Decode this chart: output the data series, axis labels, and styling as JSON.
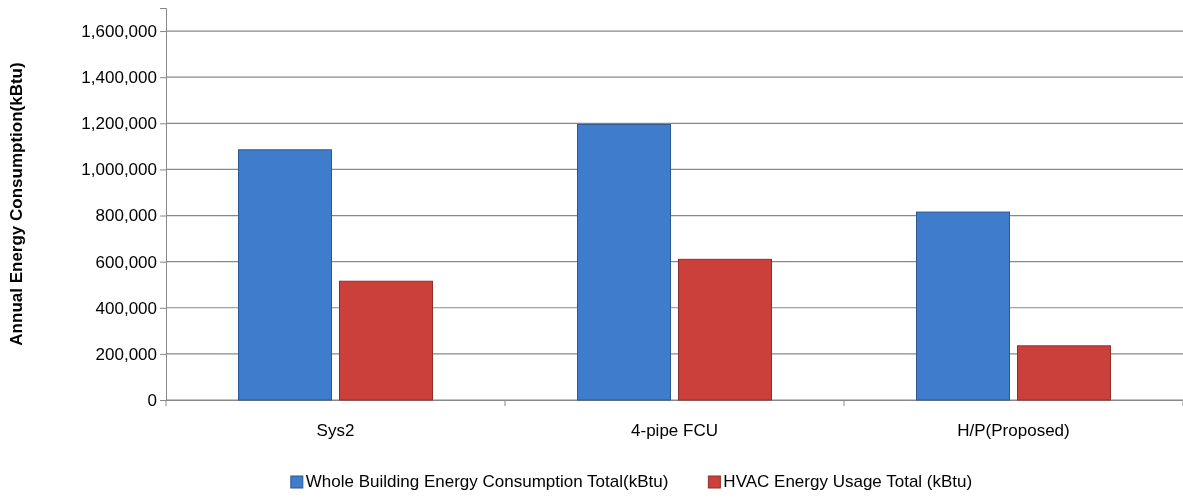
{
  "chart_data": {
    "type": "bar",
    "ylabel": "Annual Energy Consumption(kBtu)",
    "categories": [
      "Sys2",
      "4-pipe FCU",
      "H/P(Proposed)"
    ],
    "series": [
      {
        "name": "Whole Building Energy Consumption  Total(kBtu)",
        "color": "#3f7ccc",
        "values": [
          1085000,
          1195000,
          815000
        ]
      },
      {
        "name": "HVAC Energy Usage Total (kBtu)",
        "color": "#cc403c",
        "values": [
          515000,
          610000,
          235000
        ]
      }
    ],
    "ylim": [
      0,
      1700000
    ],
    "yticks": [
      {
        "value": 0,
        "label": "0"
      },
      {
        "value": 200000,
        "label": "200,000"
      },
      {
        "value": 400000,
        "label": "400,000"
      },
      {
        "value": 600000,
        "label": "600,000"
      },
      {
        "value": 800000,
        "label": "800,000"
      },
      {
        "value": 1000000,
        "label": "1,000,000"
      },
      {
        "value": 1200000,
        "label": "1,200,000"
      },
      {
        "value": 1400000,
        "label": "1,400,000"
      },
      {
        "value": 1600000,
        "label": "1,600,000"
      }
    ],
    "grid": "y",
    "legend": "bottom"
  }
}
